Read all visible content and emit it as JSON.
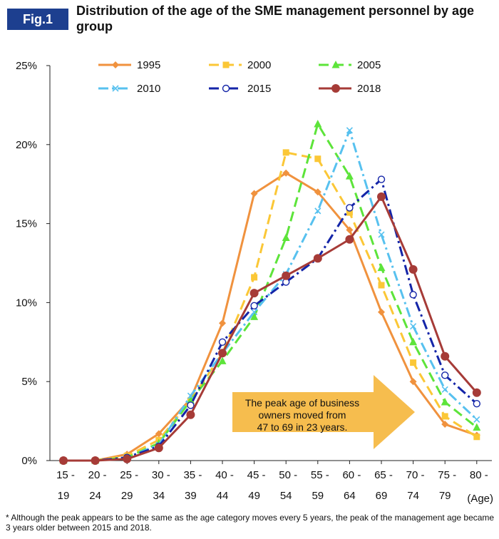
{
  "figure_label": "Fig.1",
  "title": "Distribution of the age of the SME management personnel by age group",
  "footnote": "* Although the peak appears to be the same as the age category moves every 5 years, the peak of the management age became 3 years older between 2015 and 2018.",
  "annotation": [
    "The peak age of business",
    "owners moved from",
    "47 to 69 in 23 years."
  ],
  "colors": {
    "1995": "#f0923e",
    "2000": "#fbc736",
    "2005": "#5de43a",
    "2010": "#57c1ef",
    "2015": "#1425a8",
    "2018": "#a63b37",
    "arrow": "#f6bd4e",
    "badge": "#1d3f8f"
  },
  "chart_data": {
    "type": "line",
    "categories": [
      [
        "15 -",
        "19"
      ],
      [
        "20 -",
        "24"
      ],
      [
        "25 -",
        "29"
      ],
      [
        "30 -",
        "34"
      ],
      [
        "35 -",
        "39"
      ],
      [
        "40 -",
        "44"
      ],
      [
        "45 -",
        "49"
      ],
      [
        "50 -",
        "54"
      ],
      [
        "55 -",
        "59"
      ],
      [
        "60 -",
        "64"
      ],
      [
        "65 -",
        "69"
      ],
      [
        "70 -",
        "74"
      ],
      [
        "75 -",
        "79"
      ],
      [
        "80 -",
        ""
      ]
    ],
    "xunit": "(Age)",
    "yticks": [
      "0%",
      "5%",
      "10%",
      "15%",
      "20%",
      "25%"
    ],
    "ylim": [
      0,
      25
    ],
    "grid": false,
    "legend_position": "top",
    "series": [
      {
        "name": "1995",
        "marker": "diamond",
        "dash": "solid",
        "values": [
          0,
          0,
          0.4,
          1.7,
          3.9,
          8.7,
          16.9,
          18.2,
          17.0,
          14.6,
          9.4,
          5.0,
          2.3,
          1.6
        ]
      },
      {
        "name": "2000",
        "marker": "square",
        "dash": "dash",
        "values": [
          0,
          0,
          0.3,
          1.3,
          3.8,
          6.8,
          11.6,
          19.5,
          19.1,
          15.7,
          11.1,
          6.2,
          2.8,
          1.5
        ]
      },
      {
        "name": "2005",
        "marker": "triangle",
        "dash": "dash",
        "values": [
          0,
          0,
          0.2,
          1.1,
          3.8,
          6.3,
          9.1,
          14.1,
          21.3,
          18.0,
          12.2,
          7.5,
          3.7,
          2.1
        ]
      },
      {
        "name": "2010",
        "marker": "x",
        "dash": "dashdot",
        "values": [
          0,
          0,
          0.2,
          1.0,
          4.1,
          6.8,
          9.4,
          11.8,
          15.8,
          20.9,
          14.3,
          8.5,
          4.5,
          2.6
        ]
      },
      {
        "name": "2015",
        "marker": "circle",
        "dash": "dashdot",
        "values": [
          0,
          0,
          0.2,
          0.9,
          3.5,
          7.5,
          9.8,
          11.3,
          12.8,
          16.0,
          17.8,
          10.5,
          5.4,
          3.6
        ]
      },
      {
        "name": "2018",
        "marker": "dot",
        "dash": "solid",
        "values": [
          0,
          0,
          0.1,
          0.8,
          2.9,
          6.8,
          10.6,
          11.7,
          12.8,
          14.0,
          16.7,
          12.1,
          6.6,
          4.3
        ]
      }
    ]
  }
}
